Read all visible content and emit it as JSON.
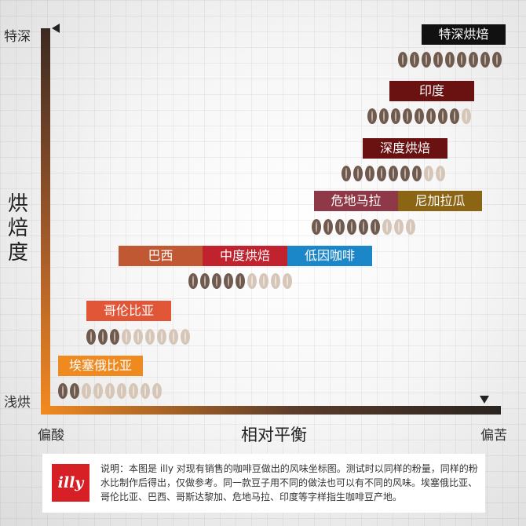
{
  "axes": {
    "y_top": "特深",
    "y_bottom": "浅烘",
    "y_title": [
      "烘",
      "焙",
      "度"
    ],
    "x_left": "偏酸",
    "x_right": "偏苦",
    "x_title": "相对平衡"
  },
  "bean_colors": {
    "dark": "#6f5a4d",
    "light": "#d6c6b8"
  },
  "items": [
    {
      "label": "特深烘焙",
      "color": "#111111",
      "dark_beans": 9,
      "total_beans": 9
    },
    {
      "label": "印度",
      "color": "#6a1111",
      "dark_beans": 8,
      "total_beans": 9
    },
    {
      "label": "深度烘焙",
      "color": "#6a1111",
      "dark_beans": 7,
      "total_beans": 9
    },
    {
      "label": "危地马拉",
      "color": "#8f3848",
      "dark_beans": 6,
      "total_beans": 9
    },
    {
      "label": "尼加拉瓜",
      "color": "#8b6414",
      "dark_beans": 6,
      "total_beans": 9
    },
    {
      "label": "巴西",
      "color": "#c05933",
      "dark_beans": 5,
      "total_beans": 9
    },
    {
      "label": "中度烘焙",
      "color": "#c0222e",
      "dark_beans": 5,
      "total_beans": 9
    },
    {
      "label": "低因咖啡",
      "color": "#1b86c8",
      "dark_beans": 5,
      "total_beans": 9
    },
    {
      "label": "哥伦比亚",
      "color": "#e05636",
      "dark_beans": 3,
      "total_beans": 9
    },
    {
      "label": "埃塞俄比亚",
      "color": "#ef8a21",
      "dark_beans": 2,
      "total_beans": 9
    }
  ],
  "info": {
    "logo": "illy",
    "note": "说明：本图是 illy 对现有销售的咖啡豆做出的风味坐标图。测试时以同样的粉量，同样的粉水比制作后得出，仅做参考。同一款豆子用不同的做法也可以有不同的风味。埃塞俄比亚、哥伦比亚、巴西、哥斯达黎加、危地马拉、印度等字样指生咖啡豆产地。"
  }
}
